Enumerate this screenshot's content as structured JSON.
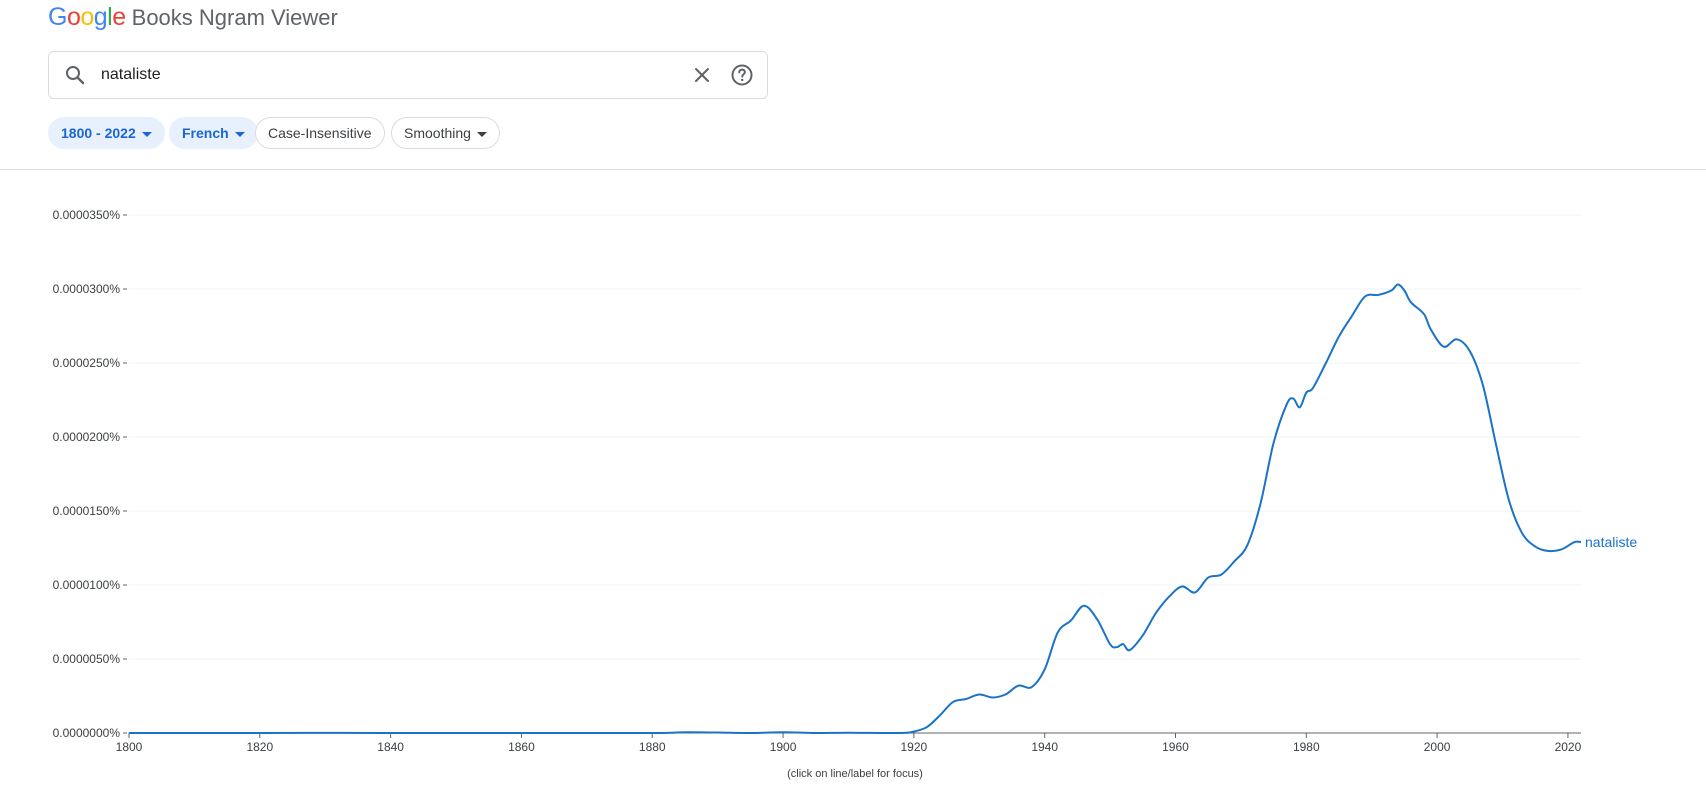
{
  "logo": {
    "google_letters": [
      {
        "ch": "G",
        "color": "#4285F4"
      },
      {
        "ch": "o",
        "color": "#EA4335"
      },
      {
        "ch": "o",
        "color": "#FBBC05"
      },
      {
        "ch": "g",
        "color": "#4285F4"
      },
      {
        "ch": "l",
        "color": "#34A853"
      },
      {
        "ch": "e",
        "color": "#EA4335"
      }
    ],
    "app_name": "Books Ngram Viewer"
  },
  "search": {
    "value": "nataliste",
    "icon": "search-icon",
    "clear_icon": "close-icon",
    "help_icon": "help-icon"
  },
  "filters": {
    "year_range": "1800 - 2022",
    "corpus": "French",
    "case": "Case-Insensitive",
    "smoothing": "Smoothing"
  },
  "colors": {
    "series": "#1a73c8",
    "chip_active_bg": "#e8f0fe",
    "chip_active_text": "#1967d2"
  },
  "chart_data": {
    "type": "line",
    "title": "",
    "xlabel": "",
    "ylabel": "",
    "xlim": [
      1800,
      2022
    ],
    "ylim": [
      0,
      3.5e-05
    ],
    "grid": true,
    "x_ticks": [
      1800,
      1820,
      1840,
      1860,
      1880,
      1900,
      1920,
      1940,
      1960,
      1980,
      2000,
      2020
    ],
    "y_ticks": [
      0,
      5e-06,
      1e-05,
      1.5e-05,
      2e-05,
      2.5e-05,
      3e-05,
      3.5e-05
    ],
    "y_tick_labels": [
      "0.0000000%",
      "0.0000050%",
      "0.0000100%",
      "0.0000150%",
      "0.0000200%",
      "0.0000250%",
      "0.0000300%",
      "0.0000350%"
    ],
    "series": [
      {
        "name": "nataliste",
        "points": [
          [
            1800,
            0.0
          ],
          [
            1820,
            0.0
          ],
          [
            1830,
            1e-08
          ],
          [
            1840,
            0.0
          ],
          [
            1860,
            0.0
          ],
          [
            1880,
            0.0
          ],
          [
            1885,
            5e-08
          ],
          [
            1890,
            3e-08
          ],
          [
            1895,
            0.0
          ],
          [
            1900,
            5e-08
          ],
          [
            1905,
            0.0
          ],
          [
            1910,
            2e-08
          ],
          [
            1918,
            0.0
          ],
          [
            1920,
            1e-07
          ],
          [
            1922,
            4e-07
          ],
          [
            1924,
            1.2e-06
          ],
          [
            1926,
            2.1e-06
          ],
          [
            1928,
            2.3e-06
          ],
          [
            1930,
            2.6e-06
          ],
          [
            1932,
            2.4e-06
          ],
          [
            1934,
            2.6e-06
          ],
          [
            1936,
            3.2e-06
          ],
          [
            1938,
            3.1e-06
          ],
          [
            1940,
            4.3e-06
          ],
          [
            1942,
            6.8e-06
          ],
          [
            1944,
            7.6e-06
          ],
          [
            1946,
            8.6e-06
          ],
          [
            1948,
            7.7e-06
          ],
          [
            1950,
            6e-06
          ],
          [
            1951,
            5.8e-06
          ],
          [
            1952,
            6e-06
          ],
          [
            1953,
            5.6e-06
          ],
          [
            1955,
            6.6e-06
          ],
          [
            1957,
            8.1e-06
          ],
          [
            1959,
            9.2e-06
          ],
          [
            1961,
            9.9e-06
          ],
          [
            1963,
            9.5e-06
          ],
          [
            1965,
            1.05e-05
          ],
          [
            1967,
            1.07e-05
          ],
          [
            1969,
            1.16e-05
          ],
          [
            1971,
            1.27e-05
          ],
          [
            1973,
            1.55e-05
          ],
          [
            1975,
            1.96e-05
          ],
          [
            1977,
            2.22e-05
          ],
          [
            1978,
            2.26e-05
          ],
          [
            1979,
            2.2e-05
          ],
          [
            1980,
            2.3e-05
          ],
          [
            1981,
            2.33e-05
          ],
          [
            1983,
            2.5e-05
          ],
          [
            1985,
            2.68e-05
          ],
          [
            1987,
            2.82e-05
          ],
          [
            1989,
            2.95e-05
          ],
          [
            1991,
            2.96e-05
          ],
          [
            1993,
            2.99e-05
          ],
          [
            1994,
            3.03e-05
          ],
          [
            1995,
            2.99e-05
          ],
          [
            1996,
            2.91e-05
          ],
          [
            1998,
            2.83e-05
          ],
          [
            1999,
            2.73e-05
          ],
          [
            2001,
            2.61e-05
          ],
          [
            2003,
            2.66e-05
          ],
          [
            2005,
            2.58e-05
          ],
          [
            2007,
            2.35e-05
          ],
          [
            2009,
            1.95e-05
          ],
          [
            2011,
            1.57e-05
          ],
          [
            2013,
            1.35e-05
          ],
          [
            2015,
            1.26e-05
          ],
          [
            2017,
            1.23e-05
          ],
          [
            2019,
            1.24e-05
          ],
          [
            2021,
            1.29e-05
          ],
          [
            2022,
            1.29e-05
          ]
        ]
      }
    ],
    "annotations": [
      "(click on line/label for focus)"
    ]
  }
}
